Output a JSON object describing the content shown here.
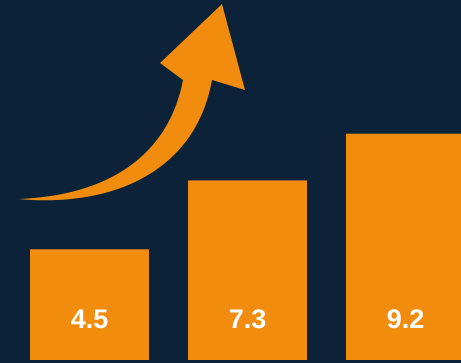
{
  "chart_data": {
    "type": "bar",
    "categories": [
      null,
      null,
      null
    ],
    "values": [
      4.5,
      7.3,
      9.2
    ],
    "color": "#f28c0f"
  }
}
